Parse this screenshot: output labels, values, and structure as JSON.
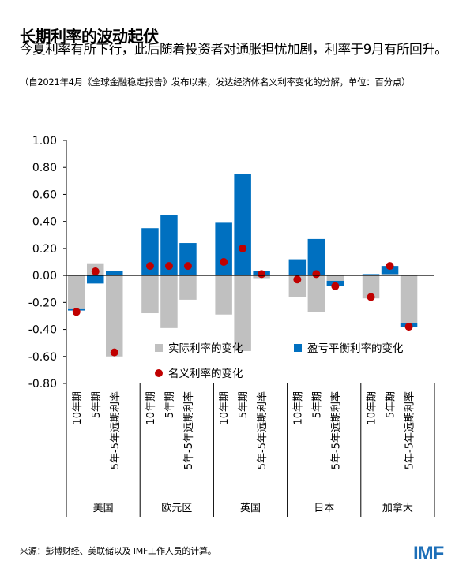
{
  "title": "长期利率的波动起伏",
  "subtitle": "今夏利率有所下行，此后随着投资者对通胀担忧加剧，利率于9月有所回升。",
  "note": "（自2021年4月《全球金融稳定报告》发布以来，发达经济体名义利率变化的分解，单位：百分点）",
  "source": "来源：彭博财经、美联储以及 IMF工作人员的计算。",
  "logo": "IMF",
  "colors": {
    "real": "#c0c0c0",
    "breakeven": "#0070c0",
    "nominal": "#c00000"
  },
  "chart_data": {
    "type": "bar",
    "stacked": true,
    "ylim": [
      -0.8,
      1.0
    ],
    "yticks": [
      "1.00",
      "0.80",
      "0.60",
      "0.40",
      "0.20",
      "0.00",
      "-0.20",
      "-0.40",
      "-0.60",
      "-0.80"
    ],
    "groups": [
      {
        "name": "美国",
        "categories": [
          "10年期",
          "5年期",
          "5年-5年远期利率"
        ]
      },
      {
        "name": "欧元区",
        "categories": [
          "10年期",
          "5年期",
          "5年-5年远期利率"
        ]
      },
      {
        "name": "英国",
        "categories": [
          "10年期",
          "5年期",
          "5年-5年远期利率"
        ]
      },
      {
        "name": "日本",
        "categories": [
          "10年期",
          "5年期",
          "5年-5年远期利率"
        ]
      },
      {
        "name": "加拿大",
        "categories": [
          "10年期",
          "5年期",
          "5年-5年远期利率"
        ]
      }
    ],
    "series": [
      {
        "name": "实际利率的变化",
        "kind": "bar",
        "values": [
          -0.25,
          0.09,
          -0.6,
          -0.28,
          -0.39,
          -0.18,
          -0.29,
          -0.56,
          -0.02,
          -0.16,
          -0.27,
          -0.04,
          -0.17,
          0.01,
          -0.35
        ]
      },
      {
        "name": "盈亏平衡利率的变化",
        "kind": "bar",
        "values": [
          -0.01,
          -0.06,
          0.03,
          0.35,
          0.45,
          0.24,
          0.39,
          0.75,
          0.03,
          0.12,
          0.27,
          -0.04,
          0.01,
          0.06,
          -0.03
        ]
      },
      {
        "name": "名义利率的变化",
        "kind": "dot",
        "values": [
          -0.27,
          0.03,
          -0.57,
          0.07,
          0.07,
          0.07,
          0.1,
          0.2,
          0.01,
          -0.03,
          0.01,
          -0.08,
          -0.16,
          0.07,
          -0.38
        ]
      }
    ],
    "legend": "inside-bottom"
  }
}
